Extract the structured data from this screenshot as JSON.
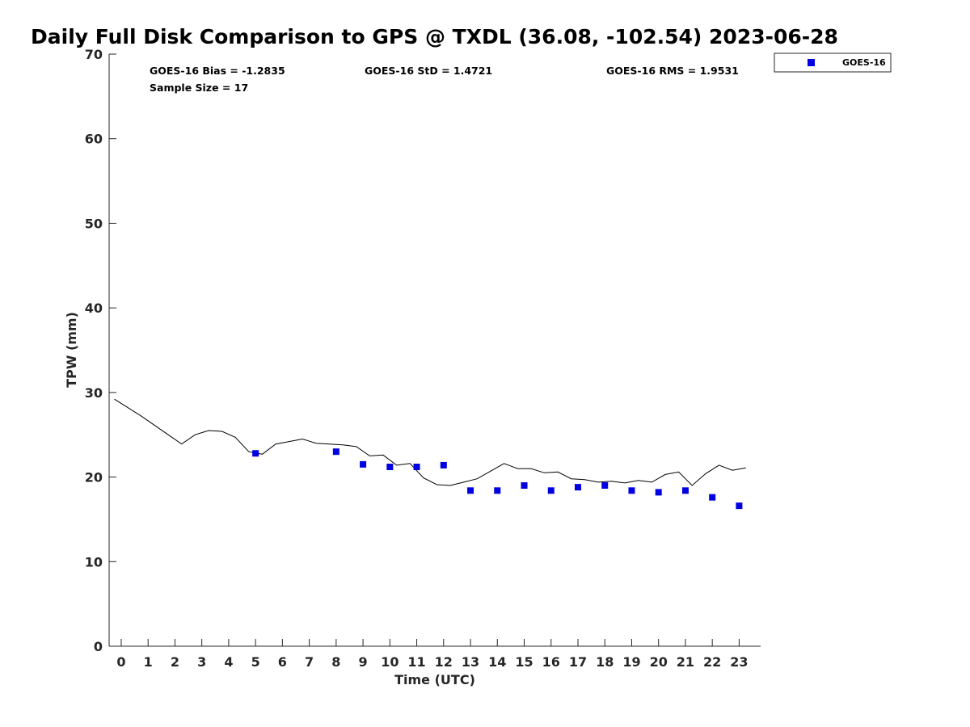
{
  "chart_data": {
    "type": "scatter",
    "title": "Daily Full Disk Comparison to GPS @ TXDL (36.08, -102.54) 2023-06-28",
    "xlabel": "Time (UTC)",
    "ylabel": "TPW (mm)",
    "xlim": [
      -0.45,
      23.8
    ],
    "ylim": [
      0,
      70
    ],
    "x_ticks": [
      "0",
      "1",
      "2",
      "3",
      "4",
      "5",
      "6",
      "7",
      "8",
      "9",
      "10",
      "11",
      "12",
      "13",
      "14",
      "15",
      "16",
      "17",
      "18",
      "19",
      "20",
      "21",
      "22",
      "23"
    ],
    "y_ticks": [
      "0",
      "10",
      "20",
      "30",
      "40",
      "50",
      "60",
      "70"
    ],
    "grid": false,
    "legend": {
      "position": "top-right-outside",
      "entries": [
        "GOES-16"
      ]
    },
    "stats": {
      "bias": "GOES-16 Bias = -1.2835",
      "std": "GOES-16 StD = 1.4721",
      "rms": "GOES-16 RMS = 1.9531",
      "sample_size": "Sample Size = 17"
    },
    "series": [
      {
        "name": "GOES-16",
        "kind": "scatter",
        "color": "#0000e0",
        "marker": "square",
        "x": [
          5,
          8,
          9,
          10,
          11,
          12,
          13,
          14,
          15,
          16,
          17,
          18,
          19,
          20,
          21,
          22,
          23
        ],
        "y": [
          22.8,
          23.0,
          21.5,
          21.2,
          21.2,
          21.4,
          18.4,
          18.4,
          19.0,
          18.4,
          18.8,
          19.0,
          18.4,
          18.2,
          18.4,
          17.6,
          16.6
        ]
      },
      {
        "kind": "line",
        "color": "#000000",
        "x": [
          -0.25,
          0.25,
          0.75,
          1.25,
          1.75,
          2.25,
          2.75,
          3.25,
          3.75,
          4.25,
          4.75,
          5.25,
          5.75,
          6.25,
          6.75,
          7.25,
          7.75,
          8.25,
          8.75,
          9.25,
          9.75,
          10.25,
          10.75,
          11.25,
          11.75,
          12.25,
          12.75,
          13.25,
          13.75,
          14.25,
          14.75,
          15.25,
          15.75,
          16.25,
          16.75,
          17.25,
          17.75,
          18.25,
          18.75,
          19.25,
          19.75,
          20.25,
          20.75,
          21.25,
          21.75,
          22.25,
          22.75,
          23.25
        ],
        "y": [
          29.2,
          28.2,
          27.2,
          26.1,
          25.0,
          23.9,
          25.0,
          25.5,
          25.4,
          24.7,
          23.0,
          22.7,
          23.9,
          24.2,
          24.5,
          24.0,
          23.9,
          23.8,
          23.6,
          22.5,
          22.6,
          21.4,
          21.6,
          19.9,
          19.1,
          19.0,
          19.4,
          19.8,
          20.7,
          21.6,
          21.0,
          21.0,
          20.5,
          20.6,
          19.8,
          19.7,
          19.4,
          19.5,
          19.3,
          19.6,
          19.4,
          20.3,
          20.6,
          19.0,
          20.4,
          21.4,
          20.8,
          21.1
        ]
      }
    ]
  }
}
